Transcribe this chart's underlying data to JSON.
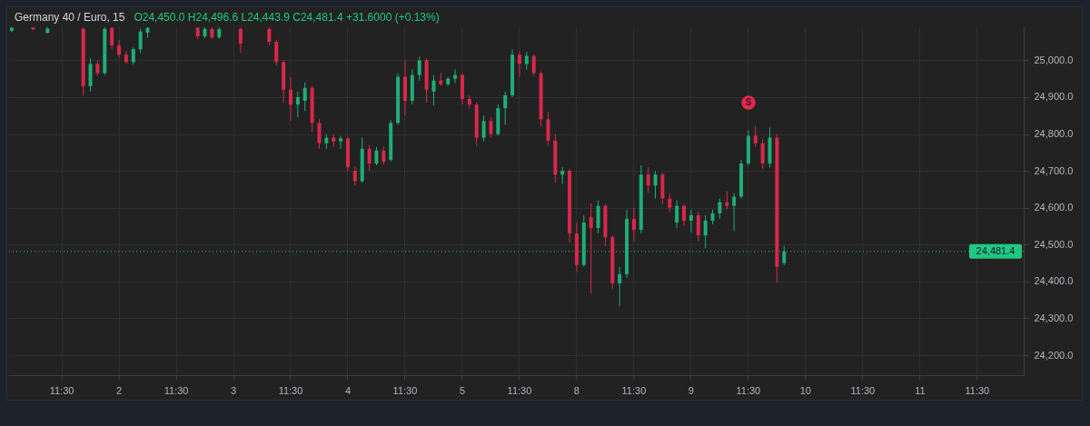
{
  "chart_data": {
    "type": "candlestick",
    "title": "Germany 40 / Euro, 15",
    "subtitle": "O24,450.0 H24,496.6 L24,443.9 C24,481.4 +31.6000 (+0.13%)",
    "categories": [
      null,
      null,
      null,
      null,
      null,
      null,
      null,
      "11:30",
      null,
      null,
      null,
      null,
      null,
      null,
      null,
      "2",
      null,
      null,
      null,
      null,
      null,
      null,
      null,
      "11:30",
      null,
      null,
      null,
      null,
      null,
      null,
      null,
      "3",
      null,
      null,
      null,
      null,
      null,
      null,
      null,
      "11:30",
      null,
      null,
      null,
      null,
      null,
      null,
      null,
      "4",
      null,
      null,
      null,
      null,
      null,
      null,
      null,
      "11:30",
      null,
      null,
      null,
      null,
      null,
      null,
      null,
      "5",
      null,
      null,
      null,
      null,
      null,
      null,
      null,
      "11:30",
      null,
      null,
      null,
      null,
      null,
      null,
      null,
      "8",
      null,
      null,
      null,
      null,
      null,
      null,
      null,
      "11:30",
      null,
      null,
      null,
      null,
      null,
      null,
      null,
      "9",
      null,
      null,
      null,
      null,
      null,
      null,
      null,
      "11:30",
      null,
      null,
      null,
      null,
      null,
      null,
      null,
      "10",
      null,
      null,
      null,
      null,
      null,
      null,
      null,
      "11:30",
      null,
      null,
      null,
      null,
      null,
      null,
      null,
      "11",
      null,
      null,
      null,
      null,
      null,
      null,
      null,
      "11:30",
      null,
      null,
      null,
      null,
      null,
      null
    ],
    "ohlc": [
      [
        25080,
        25090,
        25076,
        25088
      ],
      null,
      null,
      [
        25089,
        25090,
        25082,
        25084
      ],
      null,
      [
        25074,
        25090,
        25073,
        25086
      ],
      null,
      null,
      null,
      null,
      [
        25085,
        25090,
        24904,
        24930
      ],
      [
        24930,
        25005,
        24915,
        24990
      ],
      [
        24990,
        25000,
        24958,
        24965
      ],
      [
        24965,
        25090,
        24960,
        25085
      ],
      [
        25088,
        25090,
        25030,
        25040
      ],
      [
        25040,
        25055,
        25008,
        25015
      ],
      [
        25015,
        25025,
        24990,
        24995
      ],
      [
        24995,
        25035,
        24988,
        25030
      ],
      [
        25030,
        25085,
        25020,
        25078
      ],
      [
        25075,
        25090,
        25060,
        25088
      ],
      null,
      null,
      null,
      null,
      null,
      null,
      [
        25088,
        25090,
        25058,
        25065
      ],
      [
        25065,
        25090,
        25060,
        25085
      ],
      [
        25085,
        25090,
        25058,
        25062
      ],
      [
        25062,
        25090,
        25058,
        25084
      ],
      null,
      null,
      [
        25085,
        25090,
        25021,
        25045
      ],
      null,
      null,
      null,
      [
        25085,
        25090,
        25040,
        25050
      ],
      [
        25050,
        25055,
        24985,
        24995
      ],
      [
        24995,
        25000,
        24885,
        24920
      ],
      [
        24920,
        24955,
        24836,
        24880
      ],
      [
        24880,
        24915,
        24845,
        24900
      ],
      [
        24890,
        24940,
        24862,
        24925
      ],
      [
        24925,
        24930,
        24806,
        24830
      ],
      [
        24830,
        24840,
        24760,
        24775
      ],
      [
        24775,
        24800,
        24760,
        24790
      ],
      [
        24790,
        24800,
        24765,
        24780
      ],
      [
        24780,
        24795,
        24760,
        24788
      ],
      [
        24788,
        24792,
        24700,
        24710
      ],
      [
        24700,
        24712,
        24660,
        24672
      ],
      [
        24672,
        24790,
        24668,
        24760
      ],
      [
        24760,
        24770,
        24700,
        24720
      ],
      [
        24720,
        24765,
        24715,
        24755
      ],
      [
        24755,
        24765,
        24718,
        24725
      ],
      [
        24730,
        24838,
        24725,
        24830
      ],
      [
        24830,
        24965,
        24825,
        24955
      ],
      [
        24955,
        25000,
        24850,
        24890
      ],
      [
        24890,
        24975,
        24880,
        24960
      ],
      [
        24960,
        25010,
        24945,
        25000
      ],
      [
        25000,
        25005,
        24885,
        24920
      ],
      [
        24915,
        24960,
        24877,
        24945
      ],
      [
        24945,
        24965,
        24930,
        24935
      ],
      [
        24935,
        24955,
        24930,
        24950
      ],
      [
        24950,
        24975,
        24938,
        24960
      ],
      [
        24960,
        24965,
        24880,
        24895
      ],
      [
        24895,
        24905,
        24868,
        24880
      ],
      [
        24880,
        24885,
        24768,
        24790
      ],
      [
        24790,
        24850,
        24780,
        24835
      ],
      [
        24835,
        24845,
        24790,
        24800
      ],
      [
        24800,
        24880,
        24795,
        24870
      ],
      [
        24870,
        24915,
        24825,
        24905
      ],
      [
        24905,
        25030,
        24900,
        25015
      ],
      [
        25015,
        25025,
        24955,
        24990
      ],
      [
        24990,
        25023,
        24975,
        25012
      ],
      [
        25012,
        25015,
        24958,
        24965
      ],
      [
        24965,
        24970,
        24820,
        24840
      ],
      [
        24840,
        24860,
        24768,
        24782
      ],
      [
        24782,
        24800,
        24668,
        24690
      ],
      [
        24690,
        24710,
        24665,
        24700
      ],
      [
        24700,
        24705,
        24505,
        24530
      ],
      [
        24530,
        24560,
        24425,
        24445
      ],
      [
        24445,
        24580,
        24440,
        24560
      ],
      [
        24575,
        24612,
        24368,
        24545
      ],
      [
        24545,
        24620,
        24530,
        24605
      ],
      [
        24605,
        24610,
        24495,
        24520
      ],
      [
        24520,
        24525,
        24380,
        24395
      ],
      [
        24395,
        24440,
        24334,
        24420
      ],
      [
        24420,
        24595,
        24410,
        24570
      ],
      [
        24570,
        24600,
        24510,
        24540
      ],
      [
        24540,
        24715,
        24530,
        24690
      ],
      [
        24690,
        24710,
        24640,
        24660
      ],
      [
        24660,
        24700,
        24625,
        24690
      ],
      [
        24690,
        24695,
        24610,
        24625
      ],
      [
        24625,
        24640,
        24588,
        24600
      ],
      [
        24560,
        24620,
        24545,
        24605
      ],
      [
        24605,
        24610,
        24550,
        24565
      ],
      [
        24565,
        24595,
        24533,
        24580
      ],
      [
        24580,
        24590,
        24510,
        24525
      ],
      [
        24525,
        24580,
        24490,
        24565
      ],
      [
        24565,
        24595,
        24555,
        24585
      ],
      [
        24585,
        24625,
        24570,
        24615
      ],
      [
        24615,
        24645,
        24595,
        24605
      ],
      [
        24605,
        24640,
        24537,
        24630
      ],
      [
        24630,
        24730,
        24625,
        24720
      ],
      [
        24720,
        24810,
        24715,
        24795
      ],
      [
        24795,
        24822,
        24765,
        24775
      ],
      [
        24775,
        24785,
        24705,
        24720
      ],
      [
        24720,
        24818,
        24710,
        24790
      ],
      [
        24790,
        24800,
        24397,
        24440
      ],
      [
        24450,
        24496.6,
        24443.9,
        24481.4
      ],
      null,
      null,
      null,
      null,
      null,
      null,
      null,
      null,
      null,
      null,
      null,
      null,
      null,
      null,
      null,
      null,
      null,
      null,
      null,
      null,
      null,
      null,
      null,
      null,
      null,
      null,
      null,
      null,
      null,
      null,
      null,
      null,
      null
    ],
    "colors": [
      "#1fad78",
      null,
      null,
      "#d8284b",
      null,
      "#1fad78",
      null,
      null,
      null,
      null,
      "#d8284b",
      "#1fad78",
      "#d8284b",
      "#1fad78",
      "#d8284b",
      "#d8284b",
      "#d8284b",
      "#1fad78",
      "#1fad78",
      "#1fad78",
      null,
      null,
      null,
      null,
      null,
      null,
      "#d8284b",
      "#1fad78",
      "#d8284b",
      "#1fad78",
      null,
      null,
      "#d8284b",
      null,
      null,
      null,
      "#d8284b",
      "#d8284b",
      "#d8284b",
      "#d8284b",
      "#1fad78",
      "#1fad78",
      "#d8284b",
      "#d8284b",
      "#1fad78",
      "#d8284b",
      "#1fad78",
      "#d8284b",
      "#d8284b",
      "#1fad78",
      "#d8284b",
      "#1fad78",
      "#d8284b",
      "#1fad78",
      "#1fad78",
      "#d8284b",
      "#1fad78",
      "#1fad78",
      "#d8284b",
      "#1fad78",
      "#d8284b",
      "#1fad78",
      "#1fad78",
      "#d8284b",
      "#d8284b",
      "#d8284b",
      "#1fad78",
      "#d8284b",
      "#1fad78",
      "#1fad78",
      "#1fad78",
      "#d8284b",
      "#1fad78",
      "#d8284b",
      "#d8284b",
      "#d8284b",
      "#d8284b",
      "#1fad78",
      "#d8284b",
      "#d8284b",
      "#1fad78",
      "#d8284b",
      "#1fad78",
      "#d8284b",
      "#d8284b",
      "#1fad78",
      "#1fad78",
      "#d8284b",
      "#1fad78",
      "#d8284b",
      "#1fad78",
      "#d8284b",
      "#d8284b",
      "#1fad78",
      "#d8284b",
      "#1fad78",
      "#d8284b",
      "#1fad78",
      "#1fad78",
      "#1fad78",
      "#d8284b",
      "#1fad78",
      "#1fad78",
      "#1fad78",
      "#d8284b",
      "#d8284b",
      "#1fad78",
      "#d8284b",
      "#1fad78",
      null,
      null,
      null,
      null,
      null,
      null,
      null,
      null,
      null,
      null,
      null,
      null,
      null,
      null,
      null,
      null,
      null,
      null,
      null,
      null,
      null,
      null,
      null,
      null,
      null,
      null,
      null,
      null,
      null,
      null,
      null,
      null,
      null
    ],
    "ylim": [
      24146,
      25092
    ],
    "yticks": [
      {
        "value": 24200,
        "label": "24,200.0"
      },
      {
        "value": 24300,
        "label": "24,300.0"
      },
      {
        "value": 24400,
        "label": "24,400.0"
      },
      {
        "value": 24500,
        "label": "24,500.0"
      },
      {
        "value": 24600,
        "label": "24,600.0"
      },
      {
        "value": 24700,
        "label": "24,700.0"
      },
      {
        "value": 24800,
        "label": "24,800.0"
      },
      {
        "value": 24900,
        "label": "24,900.0"
      },
      {
        "value": 25000,
        "label": "25,000.0"
      }
    ],
    "grid": true,
    "ref_lines": [
      {
        "axis": "y",
        "value": 24481.4,
        "label": "24,481.4",
        "color": "#1fc983",
        "line_style": "dotted"
      }
    ],
    "annotations": [
      {
        "text": "S",
        "y": 24885
      }
    ]
  }
}
